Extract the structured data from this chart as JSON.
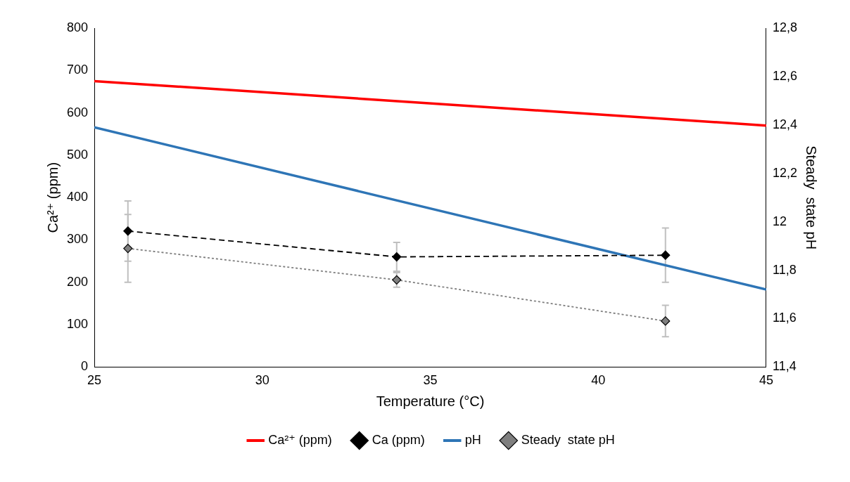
{
  "chart_data": {
    "type": "line",
    "xlabel": "Temperature (°C)",
    "ylabel": "Ca²⁺ (ppm)",
    "y2label": "Steady  state pH",
    "xlim": [
      25,
      45
    ],
    "xticks": [
      25,
      30,
      35,
      40,
      45
    ],
    "ylim": [
      0,
      800
    ],
    "yticks": [
      0,
      100,
      200,
      300,
      400,
      500,
      600,
      700,
      800
    ],
    "y2lim": [
      11.4,
      12.8
    ],
    "y2ticks": [
      {
        "value": 11.4,
        "label": "11,4"
      },
      {
        "value": 11.6,
        "label": "11,6"
      },
      {
        "value": 11.8,
        "label": "11,8"
      },
      12,
      {
        "value": 12.2,
        "label": "12,2"
      },
      {
        "value": 12.4,
        "label": "12,4"
      },
      {
        "value": 12.6,
        "label": "12,6"
      },
      {
        "value": 12.8,
        "label": "12,8"
      }
    ],
    "grid": false,
    "legend": "bottom",
    "series": [
      {
        "name": "Ca²⁺ (ppm)",
        "color": "#ff0000",
        "x": [
          25,
          45
        ],
        "values": [
          675,
          570
        ],
        "marker": "none",
        "line_style": "solid"
      },
      {
        "name": "Ca (ppm)",
        "color": "#000000",
        "x": [
          26,
          34,
          42
        ],
        "values": [
          321,
          260,
          264
        ],
        "errors": [
          71,
          34,
          64
        ],
        "marker": "diamond",
        "line_style": "dashed"
      },
      {
        "name": "pH",
        "color": "#2e75b6",
        "axis": "y2",
        "x": [
          25,
          45
        ],
        "values": [
          12.39,
          11.72
        ],
        "marker": "none",
        "line_style": "solid"
      },
      {
        "name": "Steady  state pH",
        "color": "#7f7f7f",
        "axis": "y2",
        "x": [
          26,
          34,
          42
        ],
        "values": [
          11.89,
          11.76,
          11.59
        ],
        "errors": [
          0.14,
          0.03,
          0.065
        ],
        "marker": "diamond",
        "line_style": "dotted"
      }
    ]
  }
}
